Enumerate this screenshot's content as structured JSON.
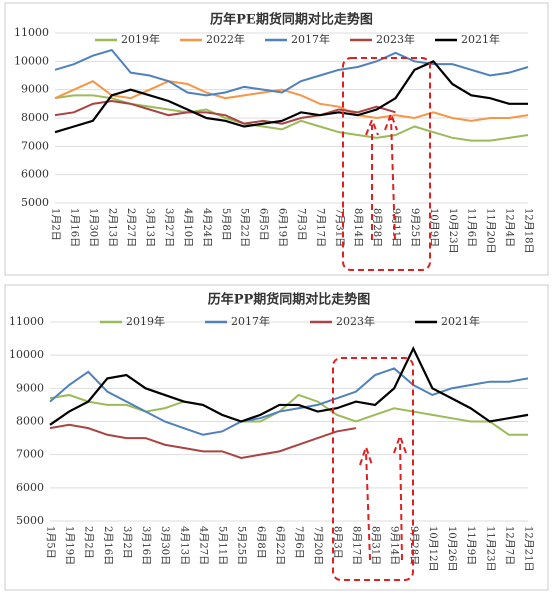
{
  "chart_data": [
    {
      "type": "line",
      "title": "历年PE期货同期对比走势图",
      "categories": [
        "1月2日",
        "1月16日",
        "1月30日",
        "2月13日",
        "2月27日",
        "3月13日",
        "3月27日",
        "4月10日",
        "4月24日",
        "5月8日",
        "5月22日",
        "6月5日",
        "6月19日",
        "7月3日",
        "7月17日",
        "7月31日",
        "8月14日",
        "8月28日",
        "9月11日",
        "9月25日",
        "10月9日",
        "10月23日",
        "11月6日",
        "11月20日",
        "12月4日",
        "12月18日"
      ],
      "series": [
        {
          "name": "2019年",
          "color": "#9bbb59",
          "values": [
            8700,
            8800,
            8800,
            8700,
            8500,
            8400,
            8300,
            8200,
            8300,
            8000,
            7800,
            7700,
            7600,
            7900,
            7700,
            7500,
            7400,
            7300,
            7400,
            7700,
            7500,
            7300,
            7200,
            7200,
            7300,
            7400
          ]
        },
        {
          "name": "2022年",
          "color": "#f79646",
          "values": [
            8700,
            9000,
            9300,
            8800,
            8700,
            9000,
            9300,
            9200,
            8900,
            8700,
            8800,
            8900,
            9000,
            8800,
            8500,
            8400,
            8100,
            8000,
            8100,
            8000,
            8200,
            8000,
            7900,
            8000,
            8000,
            8100
          ]
        },
        {
          "name": "2017年",
          "color": "#4f81bd",
          "values": [
            9700,
            9900,
            10200,
            10400,
            9600,
            9500,
            9300,
            8900,
            8800,
            8900,
            9100,
            9000,
            8900,
            9300,
            9500,
            9700,
            9800,
            10000,
            10300,
            10000,
            9900,
            9900,
            9700,
            9500,
            9600,
            9800
          ]
        },
        {
          "name": "2023年",
          "color": "#a94442",
          "values": [
            8100,
            8200,
            8500,
            8600,
            8500,
            8300,
            8100,
            8200,
            8200,
            8100,
            7800,
            7900,
            7800,
            8000,
            8100,
            8300,
            8200,
            8400,
            8200,
            null,
            null,
            null,
            null,
            null,
            null,
            null
          ]
        },
        {
          "name": "2021年",
          "color": "#000000",
          "values": [
            7500,
            7700,
            7900,
            8800,
            9000,
            8800,
            8600,
            8300,
            8000,
            7900,
            7700,
            7800,
            7900,
            8200,
            8100,
            8200,
            8100,
            8300,
            8700,
            9700,
            10000,
            9200,
            8800,
            8700,
            8500,
            8500
          ]
        }
      ],
      "ylim": [
        5000,
        11000
      ],
      "yticks": [
        5000,
        6000,
        7000,
        8000,
        9000,
        10000,
        11000
      ],
      "grid": true
    },
    {
      "type": "line",
      "title": "历年PP期货同期对比走势图",
      "categories": [
        "1月5日",
        "1月19日",
        "2月2日",
        "2月16日",
        "3月2日",
        "3月16日",
        "3月30日",
        "4月13日",
        "4月27日",
        "5月11日",
        "5月25日",
        "6月8日",
        "6月22日",
        "7月6日",
        "7月20日",
        "8月3日",
        "8月17日",
        "8月31日",
        "9月14日",
        "9月28日",
        "10月12日",
        "10月26日",
        "11月9日",
        "11月23日",
        "12月7日",
        "12月21日"
      ],
      "series": [
        {
          "name": "2019年",
          "color": "#9bbb59",
          "values": [
            8700,
            8800,
            8600,
            8500,
            8500,
            8300,
            8400,
            8600,
            8500,
            8200,
            8000,
            8000,
            8300,
            8800,
            8600,
            8200,
            8000,
            8200,
            8400,
            8300,
            8200,
            8100,
            8000,
            8000,
            7600,
            7600
          ]
        },
        {
          "name": "2017年",
          "color": "#4f81bd",
          "values": [
            8600,
            9100,
            9500,
            8900,
            8600,
            8300,
            8000,
            7800,
            7600,
            7700,
            8000,
            8100,
            8300,
            8400,
            8500,
            8700,
            8900,
            9400,
            9600,
            9100,
            8800,
            9000,
            9100,
            9200,
            9200,
            9300
          ]
        },
        {
          "name": "2023年",
          "color": "#a94442",
          "values": [
            7800,
            7900,
            7800,
            7600,
            7500,
            7500,
            7300,
            7200,
            7100,
            7100,
            6900,
            7000,
            7100,
            7300,
            7500,
            7700,
            7800,
            null,
            null,
            null,
            null,
            null,
            null,
            null,
            null,
            null
          ]
        },
        {
          "name": "2021年",
          "color": "#000000",
          "values": [
            7900,
            8300,
            8600,
            9300,
            9400,
            9000,
            8800,
            8600,
            8500,
            8200,
            8000,
            8200,
            8500,
            8500,
            8300,
            8400,
            8600,
            8500,
            9000,
            10200,
            9000,
            8700,
            8400,
            8000,
            8100,
            8200
          ]
        }
      ],
      "ylim": [
        5000,
        11000
      ],
      "yticks": [
        5000,
        6000,
        7000,
        8000,
        9000,
        10000,
        11000
      ],
      "grid": true
    }
  ]
}
